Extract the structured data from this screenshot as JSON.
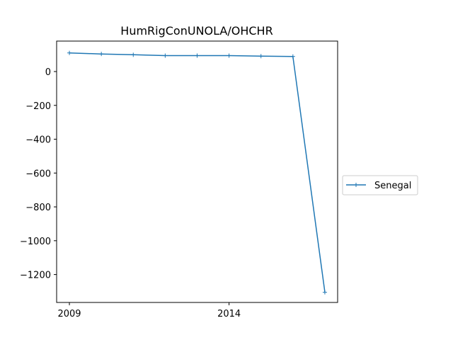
{
  "chart_data": {
    "type": "line",
    "title": "HumRigConUNOLA/OHCHR",
    "xlabel": "",
    "ylabel": "",
    "x": [
      2009,
      2010,
      2011,
      2012,
      2013,
      2014,
      2015,
      2016,
      2017
    ],
    "series": [
      {
        "name": "Senegal",
        "color": "#1f77b4",
        "marker": "+",
        "values": [
          110,
          104,
          99,
          94,
          94,
          94,
          91,
          89,
          -1305
        ]
      }
    ],
    "xlim": [
      2008.6,
      2017.4
    ],
    "ylim": [
      -1365,
      180
    ],
    "xticks": [
      2009,
      2014
    ],
    "xtick_labels": [
      "2009",
      "2014"
    ],
    "yticks": [
      0,
      -200,
      -400,
      -600,
      -800,
      -1000,
      -1200
    ],
    "ytick_labels": [
      "0",
      "−200",
      "−400",
      "−600",
      "−800",
      "−1000",
      "−1200"
    ],
    "grid": false,
    "legend_position": "right-outside"
  }
}
